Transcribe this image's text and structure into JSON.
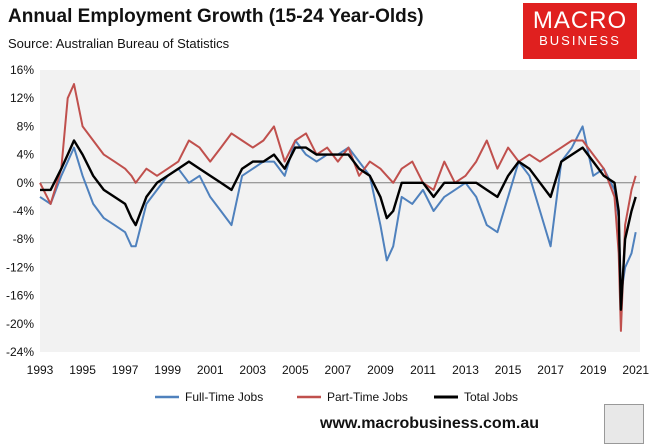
{
  "header": {
    "title": "Annual Employment Growth (15-24 Year-Olds)",
    "subtitle": "Source: Australian Bureau of Statistics"
  },
  "logo": {
    "line1": "MACRO",
    "line2": "BUSINESS"
  },
  "footer": {
    "url": "www.macrobusiness.com.au"
  },
  "colors": {
    "full_time": "#4f81bd",
    "part_time": "#c0504d",
    "total": "#000000",
    "plot_bg": "#f2f2f2",
    "brand_red": "#e0201f"
  },
  "chart_data": {
    "type": "line",
    "title": "Annual Employment Growth (15-24 Year-Olds)",
    "xlabel": "",
    "ylabel": "",
    "ylim": [
      -24,
      16
    ],
    "xlim": [
      1993,
      2021.2
    ],
    "y_ticks": [
      -24,
      -20,
      -16,
      -12,
      -8,
      -4,
      0,
      4,
      8,
      12,
      16
    ],
    "y_tick_labels": [
      "-24%",
      "-20%",
      "-16%",
      "-12%",
      "-8%",
      "-4%",
      "0%",
      "4%",
      "8%",
      "12%",
      "16%"
    ],
    "x_ticks": [
      1993,
      1995,
      1997,
      1999,
      2001,
      2003,
      2005,
      2007,
      2009,
      2011,
      2013,
      2015,
      2017,
      2019,
      2021
    ],
    "x_tick_labels": [
      "1993",
      "1995",
      "1997",
      "1999",
      "2001",
      "2003",
      "2005",
      "2007",
      "2009",
      "2011",
      "2013",
      "2015",
      "2017",
      "2019",
      "2021"
    ],
    "grid": false,
    "legend_position": "bottom",
    "x": [
      1993.0,
      1993.5,
      1994.0,
      1994.3,
      1994.6,
      1995.0,
      1995.5,
      1996.0,
      1996.5,
      1997.0,
      1997.3,
      1997.5,
      1998.0,
      1998.5,
      1999.0,
      1999.5,
      2000.0,
      2000.5,
      2001.0,
      2001.5,
      2002.0,
      2002.5,
      2003.0,
      2003.5,
      2004.0,
      2004.5,
      2005.0,
      2005.5,
      2006.0,
      2006.5,
      2007.0,
      2007.5,
      2008.0,
      2008.5,
      2009.0,
      2009.3,
      2009.6,
      2010.0,
      2010.5,
      2011.0,
      2011.5,
      2012.0,
      2012.5,
      2013.0,
      2013.5,
      2014.0,
      2014.5,
      2015.0,
      2015.5,
      2016.0,
      2016.5,
      2017.0,
      2017.5,
      2018.0,
      2018.5,
      2019.0,
      2019.5,
      2020.0,
      2020.2,
      2020.3,
      2020.5,
      2020.8,
      2021.0
    ],
    "series": [
      {
        "name": "Full-Time Jobs",
        "color": "#4f81bd",
        "values": [
          -2,
          -3,
          1,
          3,
          5,
          1,
          -3,
          -5,
          -6,
          -7,
          -9,
          -9,
          -3,
          -1,
          1,
          2,
          0,
          1,
          -2,
          -4,
          -6,
          1,
          2,
          3,
          3,
          1,
          6,
          4,
          3,
          4,
          4,
          5,
          3,
          1,
          -6,
          -11,
          -9,
          -2,
          -3,
          -1,
          -4,
          -2,
          -1,
          0,
          -2,
          -6,
          -7,
          -2,
          3,
          1,
          -4,
          -9,
          3,
          5,
          8,
          1,
          2,
          -1,
          -5,
          -16,
          -12,
          -10,
          -7
        ]
      },
      {
        "name": "Part-Time Jobs",
        "color": "#c0504d",
        "values": [
          0,
          -3,
          2,
          12,
          14,
          8,
          6,
          4,
          3,
          2,
          1,
          0,
          2,
          1,
          2,
          3,
          6,
          5,
          3,
          5,
          7,
          6,
          5,
          6,
          8,
          3,
          6,
          7,
          4,
          5,
          3,
          5,
          1,
          3,
          2,
          1,
          0,
          2,
          3,
          0,
          -1,
          3,
          0,
          1,
          3,
          6,
          2,
          5,
          3,
          4,
          3,
          4,
          5,
          6,
          6,
          4,
          2,
          -2,
          -10,
          -21,
          -6,
          -1,
          1
        ]
      },
      {
        "name": "Total Jobs",
        "color": "#000000",
        "values": [
          -1,
          -1,
          2,
          4,
          6,
          4,
          1,
          -1,
          -2,
          -3,
          -5,
          -6,
          -2,
          0,
          1,
          2,
          3,
          2,
          1,
          0,
          -1,
          2,
          3,
          3,
          4,
          2,
          5,
          5,
          4,
          4,
          4,
          4,
          2,
          1,
          -2,
          -5,
          -4,
          0,
          0,
          0,
          -2,
          0,
          0,
          0,
          0,
          -1,
          -2,
          1,
          3,
          2,
          0,
          -2,
          3,
          4,
          5,
          3,
          1,
          0,
          -4,
          -18,
          -8,
          -4,
          -2
        ]
      }
    ]
  }
}
